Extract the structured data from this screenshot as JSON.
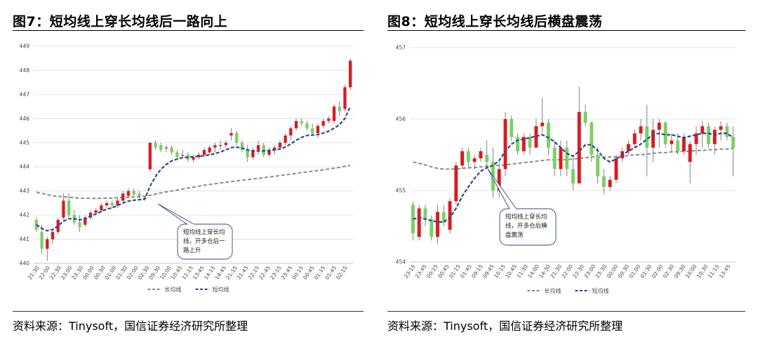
{
  "panels": [
    {
      "title": "图7：短均线上穿长均线后一路向上",
      "source": "资料来源：Tinysoft，国信证券经济研究所整理",
      "callout": [
        "短均线上穿长均",
        "线，开多仓后一",
        "路上升"
      ],
      "legend": [
        "长均线",
        "短均线"
      ],
      "colors": {
        "up": "#e8141c",
        "down": "#77d35d",
        "long_ma": "#8c8c8c",
        "short_ma": "#2a4a8b"
      },
      "chart_data": {
        "type": "candlestick",
        "ylim": [
          440,
          449
        ],
        "yticks": [
          440,
          441,
          442,
          443,
          444,
          445,
          446,
          447,
          448,
          449
        ],
        "xticks": [
          "21:30",
          "22:00",
          "22:30",
          "23:00",
          "23:30",
          "00:00",
          "00:30",
          "01:00",
          "01:30",
          "02:00",
          "02:30",
          "09:30",
          "10:00",
          "10:45",
          "11:15",
          "13:45",
          "14:15",
          "14:45",
          "21:15",
          "21:45",
          "22:15",
          "22:45",
          "23:15",
          "23:45",
          "00:15",
          "00:45",
          "01:15",
          "01:45",
          "02:15"
        ],
        "ohlc": [
          [
            441.8,
            441.9,
            441.3,
            441.4
          ],
          [
            441.3,
            441.6,
            440.4,
            440.6
          ],
          [
            440.6,
            441.1,
            440.1,
            441.0
          ],
          [
            441.0,
            441.4,
            440.8,
            441.3
          ],
          [
            441.3,
            441.9,
            441.2,
            441.8
          ],
          [
            441.9,
            442.9,
            441.8,
            442.6
          ],
          [
            442.6,
            442.9,
            441.9,
            442.0
          ],
          [
            442.0,
            442.2,
            441.6,
            441.7
          ],
          [
            441.7,
            442.0,
            441.3,
            441.5
          ],
          [
            441.6,
            442.0,
            441.5,
            441.9
          ],
          [
            441.9,
            442.2,
            441.8,
            442.1
          ],
          [
            442.1,
            442.3,
            442.0,
            442.2
          ],
          [
            442.2,
            442.5,
            442.1,
            442.4
          ],
          [
            442.4,
            442.6,
            442.3,
            442.5
          ],
          [
            442.5,
            442.6,
            442.3,
            442.4
          ],
          [
            442.4,
            442.7,
            442.3,
            442.6
          ],
          [
            442.6,
            443.0,
            442.5,
            442.9
          ],
          [
            442.8,
            443.1,
            442.7,
            443.0
          ],
          [
            443.0,
            443.1,
            442.8,
            442.85
          ],
          [
            442.9,
            443.0,
            442.7,
            442.8
          ],
          [
            442.7,
            442.8,
            442.6,
            442.7
          ],
          [
            443.9,
            445.0,
            443.8,
            445.0
          ],
          [
            445.0,
            445.1,
            444.7,
            444.8
          ],
          [
            444.9,
            445.0,
            444.6,
            444.7
          ],
          [
            444.8,
            444.9,
            444.6,
            444.8
          ],
          [
            444.8,
            444.9,
            444.5,
            444.6
          ],
          [
            444.6,
            444.7,
            444.3,
            444.4
          ],
          [
            444.5,
            444.7,
            444.4,
            444.5
          ],
          [
            444.5,
            444.6,
            444.2,
            444.3
          ],
          [
            444.3,
            444.5,
            444.2,
            444.4
          ],
          [
            444.4,
            444.6,
            444.3,
            444.5
          ],
          [
            444.5,
            444.8,
            444.4,
            444.7
          ],
          [
            444.6,
            444.9,
            444.5,
            444.8
          ],
          [
            444.8,
            445.0,
            444.6,
            444.9
          ],
          [
            444.9,
            445.1,
            444.7,
            444.9
          ],
          [
            444.9,
            445.1,
            444.8,
            445.0
          ],
          [
            445.3,
            445.6,
            445.1,
            445.4
          ],
          [
            445.4,
            445.5,
            444.9,
            445.0
          ],
          [
            445.0,
            445.1,
            444.6,
            444.7
          ],
          [
            444.7,
            444.9,
            444.2,
            444.4
          ],
          [
            444.4,
            444.8,
            444.3,
            444.7
          ],
          [
            444.7,
            445.1,
            444.5,
            444.9
          ],
          [
            444.9,
            445.0,
            444.4,
            444.5
          ],
          [
            444.5,
            444.8,
            444.4,
            444.7
          ],
          [
            444.7,
            444.9,
            444.5,
            444.8
          ],
          [
            444.8,
            445.1,
            444.7,
            445.0
          ],
          [
            445.0,
            445.4,
            444.9,
            445.3
          ],
          [
            445.3,
            445.7,
            445.1,
            445.6
          ],
          [
            445.6,
            446.0,
            445.5,
            445.9
          ],
          [
            445.9,
            446.0,
            445.7,
            445.8
          ],
          [
            445.8,
            445.9,
            445.5,
            445.6
          ],
          [
            445.6,
            445.8,
            445.3,
            445.4
          ],
          [
            445.4,
            445.8,
            445.2,
            445.7
          ],
          [
            445.7,
            446.0,
            445.6,
            445.9
          ],
          [
            445.9,
            446.1,
            445.8,
            446.0
          ],
          [
            445.9,
            446.6,
            445.8,
            446.5
          ],
          [
            446.5,
            446.7,
            446.1,
            446.3
          ],
          [
            446.4,
            447.4,
            446.3,
            447.3
          ],
          [
            447.3,
            448.5,
            447.2,
            448.4
          ]
        ],
        "short_ma": [
          441.6,
          441.45,
          441.35,
          441.4,
          441.55,
          441.75,
          441.85,
          441.85,
          441.8,
          441.85,
          441.95,
          442.05,
          442.15,
          442.25,
          442.3,
          442.4,
          442.5,
          442.58,
          442.62,
          442.64,
          442.66,
          443.2,
          443.6,
          443.9,
          444.1,
          444.25,
          444.32,
          444.38,
          444.4,
          444.42,
          444.44,
          444.46,
          444.5,
          444.55,
          444.62,
          444.7,
          444.8,
          444.82,
          444.78,
          444.7,
          444.66,
          444.66,
          444.66,
          444.68,
          444.7,
          444.74,
          444.82,
          444.95,
          445.1,
          445.22,
          445.3,
          445.32,
          445.34,
          445.4,
          445.48,
          445.6,
          445.75,
          446.0,
          446.5
        ],
        "long_ma": [
          442.95,
          442.9,
          442.85,
          442.8,
          442.78,
          442.76,
          442.74,
          442.72,
          442.7,
          442.7,
          442.69,
          442.69,
          442.7,
          442.7,
          442.71,
          442.72,
          442.73,
          442.74,
          442.75,
          442.76,
          442.78,
          442.82,
          442.87,
          442.92,
          442.96,
          443.0,
          443.04,
          443.08,
          443.12,
          443.16,
          443.2,
          443.24,
          443.27,
          443.3,
          443.33,
          443.36,
          443.39,
          443.42,
          443.45,
          443.47,
          443.5,
          443.52,
          443.55,
          443.58,
          443.61,
          443.64,
          443.67,
          443.7,
          443.73,
          443.76,
          443.79,
          443.82,
          443.85,
          443.88,
          443.91,
          443.94,
          443.98,
          444.02,
          444.06
        ]
      }
    },
    {
      "title": "图8：短均线上穿长均线后横盘震荡",
      "source": "资料来源：Tinysoft，国信证券经济研究所整理",
      "callout": [
        "短均线上穿长均",
        "线，开多仓后横",
        "盘震荡"
      ],
      "legend": [
        "长均线",
        "短均线"
      ],
      "colors": {
        "up": "#e8141c",
        "down": "#77d35d",
        "long_ma": "#8c8c8c",
        "short_ma": "#2a4a8b"
      },
      "chart_data": {
        "type": "candlestick",
        "ylim": [
          454,
          457
        ],
        "yticks": [
          454,
          455,
          456,
          457
        ],
        "xticks": [
          "23:15",
          "23:45",
          "00:15",
          "00:45",
          "01:15",
          "01:45",
          "09:15",
          "09:45",
          "10:15",
          "10:45",
          "11:30",
          "14:00",
          "14:30",
          "21:30",
          "22:00",
          "22:30",
          "23:00",
          "23:30",
          "00:00",
          "00:30",
          "01:00",
          "01:30",
          "02:00",
          "02:30",
          "09:30",
          "10:00",
          "10:30",
          "11:15",
          "13:45"
        ],
        "ohlc": [
          [
            454.8,
            454.85,
            454.3,
            454.4
          ],
          [
            454.35,
            454.8,
            454.3,
            454.75
          ],
          [
            454.75,
            454.8,
            454.5,
            454.6
          ],
          [
            454.6,
            454.65,
            454.3,
            454.35
          ],
          [
            454.35,
            454.8,
            454.25,
            454.7
          ],
          [
            454.7,
            454.8,
            454.5,
            454.55
          ],
          [
            454.45,
            454.9,
            454.4,
            454.85
          ],
          [
            454.85,
            455.4,
            454.8,
            455.35
          ],
          [
            455.35,
            455.6,
            455.3,
            455.55
          ],
          [
            455.55,
            455.6,
            455.3,
            455.4
          ],
          [
            455.4,
            455.5,
            455.3,
            455.45
          ],
          [
            455.45,
            455.6,
            455.4,
            455.55
          ],
          [
            455.5,
            455.7,
            455.3,
            455.4
          ],
          [
            455.4,
            455.6,
            454.9,
            455.0
          ],
          [
            455.0,
            455.4,
            454.9,
            455.3
          ],
          [
            455.3,
            456.1,
            455.2,
            456.0
          ],
          [
            456.0,
            456.05,
            455.7,
            455.75
          ],
          [
            455.75,
            455.8,
            455.5,
            455.55
          ],
          [
            455.55,
            455.8,
            455.5,
            455.75
          ],
          [
            455.75,
            455.8,
            455.5,
            455.6
          ],
          [
            455.6,
            456.0,
            455.6,
            455.9
          ],
          [
            455.9,
            456.3,
            455.8,
            455.95
          ],
          [
            455.95,
            456.0,
            455.5,
            455.6
          ],
          [
            455.6,
            455.7,
            455.2,
            455.3
          ],
          [
            455.3,
            455.7,
            455.2,
            455.6
          ],
          [
            455.6,
            455.7,
            455.2,
            455.3
          ],
          [
            455.3,
            455.5,
            455.0,
            455.1
          ],
          [
            455.1,
            456.45,
            455.1,
            456.1
          ],
          [
            456.1,
            456.2,
            455.9,
            455.95
          ],
          [
            455.95,
            455.97,
            455.4,
            455.5
          ],
          [
            455.5,
            455.6,
            455.1,
            455.2
          ],
          [
            455.2,
            455.3,
            454.95,
            455.05
          ],
          [
            455.05,
            455.2,
            455.0,
            455.15
          ],
          [
            455.15,
            455.5,
            455.1,
            455.45
          ],
          [
            455.45,
            455.6,
            455.4,
            455.55
          ],
          [
            455.55,
            455.7,
            455.5,
            455.65
          ],
          [
            455.65,
            455.85,
            455.6,
            455.8
          ],
          [
            455.8,
            456.0,
            455.7,
            455.9
          ],
          [
            455.9,
            456.2,
            455.2,
            455.6
          ],
          [
            455.6,
            456.0,
            455.4,
            455.85
          ],
          [
            455.85,
            456.0,
            455.6,
            455.95
          ],
          [
            455.95,
            455.97,
            455.6,
            455.65
          ],
          [
            455.65,
            455.8,
            455.55,
            455.7
          ],
          [
            455.7,
            455.8,
            455.5,
            455.55
          ],
          [
            455.55,
            455.8,
            455.5,
            455.75
          ],
          [
            455.4,
            455.7,
            455.1,
            455.65
          ],
          [
            455.65,
            455.9,
            455.5,
            455.8
          ],
          [
            455.8,
            455.97,
            455.6,
            455.9
          ],
          [
            455.9,
            455.95,
            455.6,
            455.65
          ],
          [
            455.65,
            455.9,
            455.5,
            455.85
          ],
          [
            455.85,
            455.97,
            455.7,
            455.9
          ],
          [
            455.9,
            455.95,
            455.7,
            455.75
          ],
          [
            455.75,
            455.9,
            455.2,
            455.6
          ]
        ],
        "short_ma": [
          454.6,
          454.62,
          454.6,
          454.58,
          454.56,
          454.56,
          454.62,
          454.75,
          454.92,
          455.05,
          455.17,
          455.27,
          455.32,
          455.35,
          455.42,
          455.55,
          455.65,
          455.7,
          455.72,
          455.74,
          455.76,
          455.78,
          455.74,
          455.68,
          455.6,
          455.52,
          455.48,
          455.55,
          455.64,
          455.64,
          455.56,
          455.45,
          455.4,
          455.44,
          455.5,
          455.55,
          455.6,
          455.65,
          455.72,
          455.78,
          455.8,
          455.78,
          455.78,
          455.76,
          455.74,
          455.76,
          455.78,
          455.8,
          455.8,
          455.78,
          455.8,
          455.8,
          455.74
        ],
        "long_ma": [
          455.4,
          455.38,
          455.36,
          455.33,
          455.31,
          455.3,
          455.3,
          455.3,
          455.31,
          455.32,
          455.32,
          455.33,
          455.34,
          455.35,
          455.35,
          455.36,
          455.37,
          455.38,
          455.39,
          455.4,
          455.41,
          455.42,
          455.43,
          455.43,
          455.43,
          455.43,
          455.44,
          455.45,
          455.46,
          455.47,
          455.47,
          455.47,
          455.47,
          455.47,
          455.48,
          455.49,
          455.5,
          455.5,
          455.51,
          455.52,
          455.53,
          455.53,
          455.54,
          455.54,
          455.55,
          455.55,
          455.56,
          455.56,
          455.57,
          455.57,
          455.58,
          455.58,
          455.59
        ]
      }
    }
  ]
}
